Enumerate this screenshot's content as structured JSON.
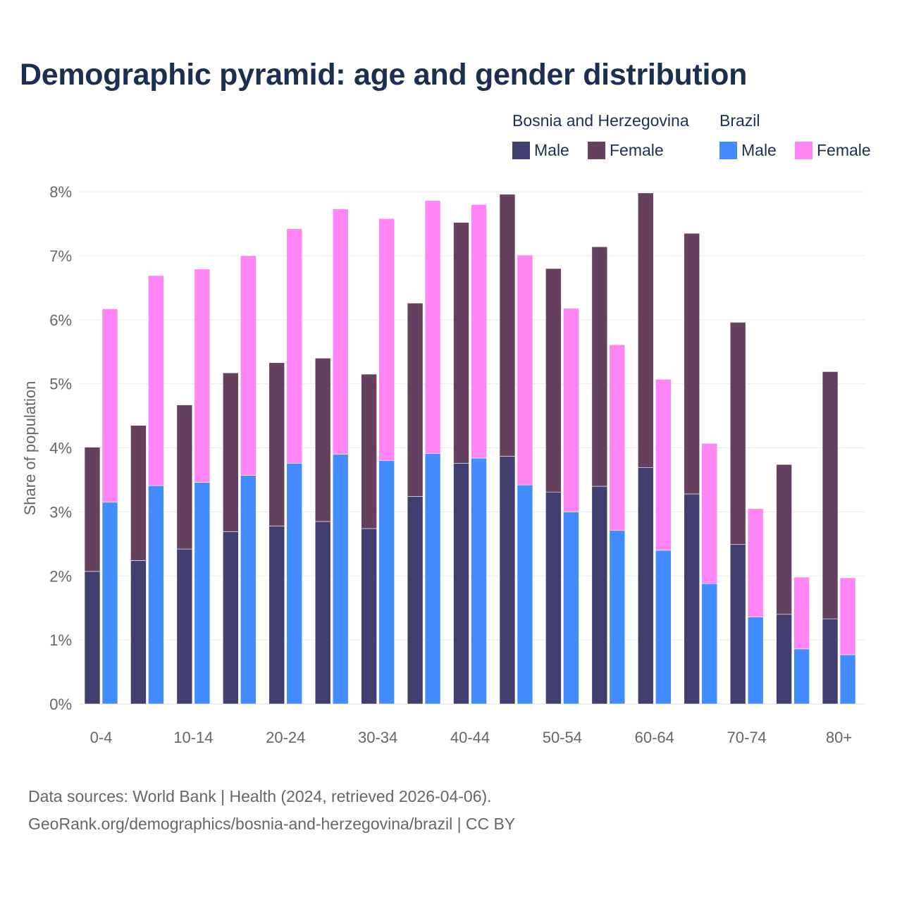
{
  "chart_data": {
    "type": "bar",
    "stacked": true,
    "title": "Demographic pyramid: age and gender distribution",
    "ylabel": "Share of population",
    "xlabel": "",
    "ylim": [
      0,
      8
    ],
    "y_ticks": [
      "0%",
      "1%",
      "2%",
      "3%",
      "4%",
      "5%",
      "6%",
      "7%",
      "8%"
    ],
    "categories": [
      "0-4",
      "5-9",
      "10-14",
      "15-19",
      "20-24",
      "25-29",
      "30-34",
      "35-39",
      "40-44",
      "45-49",
      "50-54",
      "55-59",
      "60-64",
      "65-69",
      "70-74",
      "75-79",
      "80+"
    ],
    "x_tick_labels": [
      "0-4",
      "10-14",
      "20-24",
      "30-34",
      "40-44",
      "50-54",
      "60-64",
      "70-74",
      "80+"
    ],
    "grid": true,
    "legend_placement": "top-right",
    "countries": [
      {
        "name": "Bosnia and Herzegovina",
        "series": [
          {
            "name": "Male",
            "color": "#413f6f",
            "values": [
              2.07,
              2.24,
              2.42,
              2.69,
              2.78,
              2.85,
              2.74,
              3.24,
              3.76,
              3.87,
              3.31,
              3.4,
              3.69,
              3.28,
              2.49,
              1.4,
              1.33
            ]
          },
          {
            "name": "Female",
            "color": "#66405f",
            "values": [
              1.94,
              2.11,
              2.25,
              2.48,
              2.55,
              2.55,
              2.41,
              3.02,
              3.76,
              4.09,
              3.49,
              3.74,
              4.29,
              4.07,
              3.47,
              2.34,
              3.86
            ]
          }
        ]
      },
      {
        "name": "Brazil",
        "series": [
          {
            "name": "Male",
            "color": "#428cff",
            "values": [
              3.15,
              3.41,
              3.46,
              3.57,
              3.76,
              3.9,
              3.8,
              3.91,
              3.84,
              3.42,
              3.0,
              2.71,
              2.4,
              1.88,
              1.36,
              0.86,
              0.77
            ]
          },
          {
            "name": "Female",
            "color": "#ff85f5",
            "values": [
              3.02,
              3.28,
              3.33,
              3.43,
              3.66,
              3.83,
              3.78,
              3.95,
              3.96,
              3.59,
              3.18,
              2.9,
              2.67,
              2.19,
              1.69,
              1.12,
              1.2
            ]
          }
        ]
      }
    ]
  },
  "footer": {
    "source_line": "Data sources: World Bank | Health (2024, retrieved 2026-04-06).",
    "url_line": "GeoRank.org/demographics/bosnia-and-herzegovina/brazil | CC BY"
  }
}
